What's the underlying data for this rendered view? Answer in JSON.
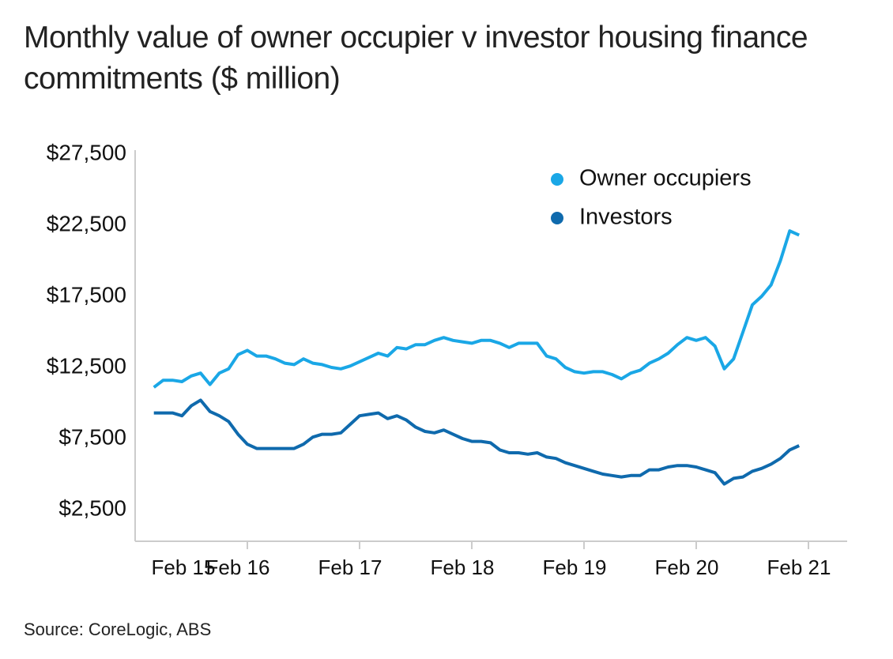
{
  "chart_data": {
    "type": "line",
    "title": "Monthly value of owner occupier v investor housing finance commitments ($ million)",
    "source": "Source: CoreLogic, ABS",
    "categories": [
      "Feb 15",
      null,
      null,
      null,
      null,
      null,
      null,
      null,
      null,
      null,
      null,
      null,
      "Feb 16",
      null,
      null,
      null,
      null,
      null,
      null,
      null,
      null,
      null,
      null,
      null,
      "Feb 17",
      null,
      null,
      null,
      null,
      null,
      null,
      null,
      null,
      null,
      null,
      null,
      "Feb 18",
      null,
      null,
      null,
      null,
      null,
      null,
      null,
      null,
      null,
      null,
      null,
      "Feb 19",
      null,
      null,
      null,
      null,
      null,
      null,
      null,
      null,
      null,
      null,
      null,
      "Feb 20",
      null,
      null,
      null,
      null,
      null,
      null,
      null,
      null,
      null,
      null,
      null,
      "Feb 21"
    ],
    "series": [
      {
        "name": "Owner occupiers",
        "color": "#1aa7e6",
        "values": [
          null,
          null,
          11100,
          11600,
          11600,
          11500,
          11900,
          12100,
          11300,
          12100,
          12400,
          13400,
          13700,
          13300,
          13300,
          13100,
          12800,
          12700,
          13100,
          12800,
          12700,
          12500,
          12400,
          12600,
          12900,
          13200,
          13500,
          13300,
          13900,
          13800,
          14100,
          14100,
          14400,
          14600,
          14400,
          14300,
          14200,
          14400,
          14400,
          14200,
          13900,
          14200,
          14200,
          14200,
          13300,
          13100,
          12500,
          12200,
          12100,
          12200,
          12200,
          12000,
          11700,
          12100,
          12300,
          12800,
          13100,
          13500,
          14100,
          14600,
          14400,
          14600,
          14000,
          12400,
          13100,
          15000,
          16900,
          17500,
          18300,
          20000,
          22100,
          21800,
          null
        ]
      },
      {
        "name": "Investors",
        "color": "#0f6aad",
        "values": [
          null,
          null,
          9300,
          9300,
          9300,
          9100,
          9800,
          10200,
          9400,
          9100,
          8700,
          7800,
          7100,
          6800,
          6800,
          6800,
          6800,
          6800,
          7100,
          7600,
          7800,
          7800,
          7900,
          8500,
          9100,
          9200,
          9300,
          8900,
          9100,
          8800,
          8300,
          8000,
          7900,
          8100,
          7800,
          7500,
          7300,
          7300,
          7200,
          6700,
          6500,
          6500,
          6400,
          6500,
          6200,
          6100,
          5800,
          5600,
          5400,
          5200,
          5000,
          4900,
          4800,
          4900,
          4900,
          5300,
          5300,
          5500,
          5600,
          5600,
          5500,
          5300,
          5100,
          4300,
          4700,
          4800,
          5200,
          5400,
          5700,
          6100,
          6700,
          7000,
          null
        ]
      }
    ],
    "ylim": [
      0,
      27500
    ],
    "yticks": [
      {
        "value": 2500,
        "label": "$2,500"
      },
      {
        "value": 7500,
        "label": "$7,500"
      },
      {
        "value": 12500,
        "label": "$12,500"
      },
      {
        "value": 17500,
        "label": "$17,500"
      },
      {
        "value": 22500,
        "label": "$22,500"
      },
      {
        "value": 27500,
        "label": "$27,500"
      }
    ],
    "grid": false,
    "legend": "top-right"
  }
}
